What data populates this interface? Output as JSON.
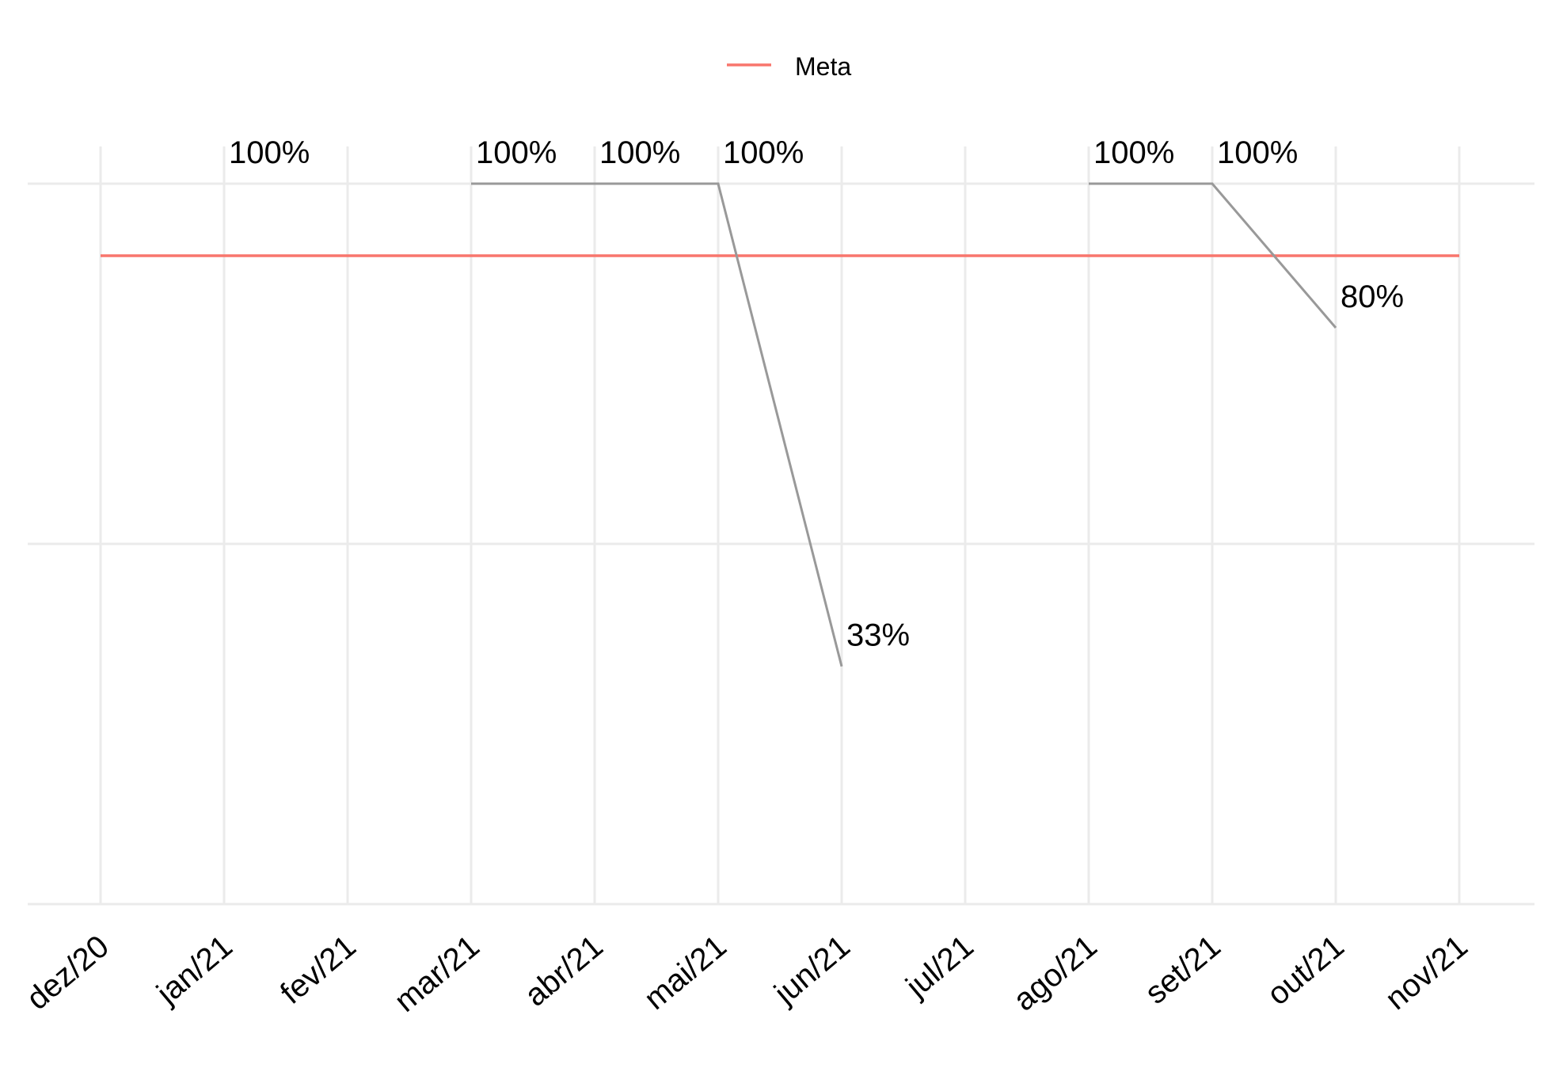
{
  "chart_data": {
    "type": "line",
    "categories": [
      "dez/20",
      "jan/21",
      "fev/21",
      "mar/21",
      "abr/21",
      "mai/21",
      "jun/21",
      "jul/21",
      "ago/21",
      "set/21",
      "out/21",
      "nov/21"
    ],
    "series": [
      {
        "values": [
          null,
          100,
          null,
          100,
          100,
          100,
          33,
          null,
          100,
          100,
          80,
          null
        ],
        "labels": [
          "",
          "100%",
          "",
          "100%",
          "100%",
          "100%",
          "33%",
          "",
          "100%",
          "100%",
          "80%",
          ""
        ],
        "color": "#999999"
      },
      {
        "name": "Meta",
        "values": [
          90,
          90,
          90,
          90,
          90,
          90,
          90,
          90,
          90,
          90,
          90,
          90
        ],
        "color": "#f8766d"
      }
    ],
    "legend": {
      "position": "top",
      "entries": [
        "Meta"
      ]
    },
    "ylim": [
      0,
      100
    ],
    "grid": true,
    "title": "",
    "xlabel": "",
    "ylabel": ""
  }
}
